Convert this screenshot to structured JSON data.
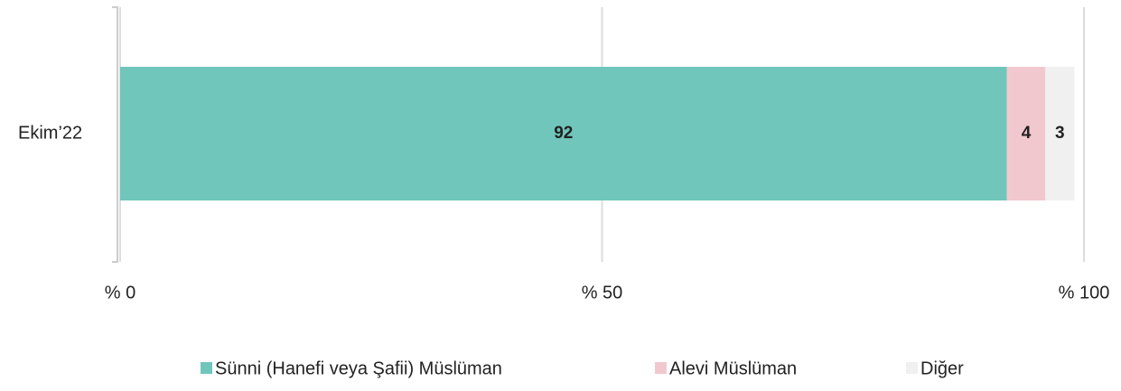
{
  "chart_data": {
    "type": "stacked-bar-horizontal",
    "categories": [
      "Ekim’22"
    ],
    "series": [
      {
        "name": "Sünni (Hanefi veya Şafii) Müslüman",
        "color": "#70c6bb",
        "values": [
          92
        ]
      },
      {
        "name": "Alevi Müslüman",
        "color": "#f2c8cf",
        "values": [
          4
        ]
      },
      {
        "name": "Diğer",
        "color": "#f0f0f0",
        "values": [
          3
        ]
      }
    ],
    "xlim": [
      0,
      100
    ],
    "xticks": [
      {
        "value": 0,
        "label": "% 0"
      },
      {
        "value": 50,
        "label": "% 50"
      },
      {
        "value": 100,
        "label": "% 100"
      }
    ],
    "grid": true
  }
}
